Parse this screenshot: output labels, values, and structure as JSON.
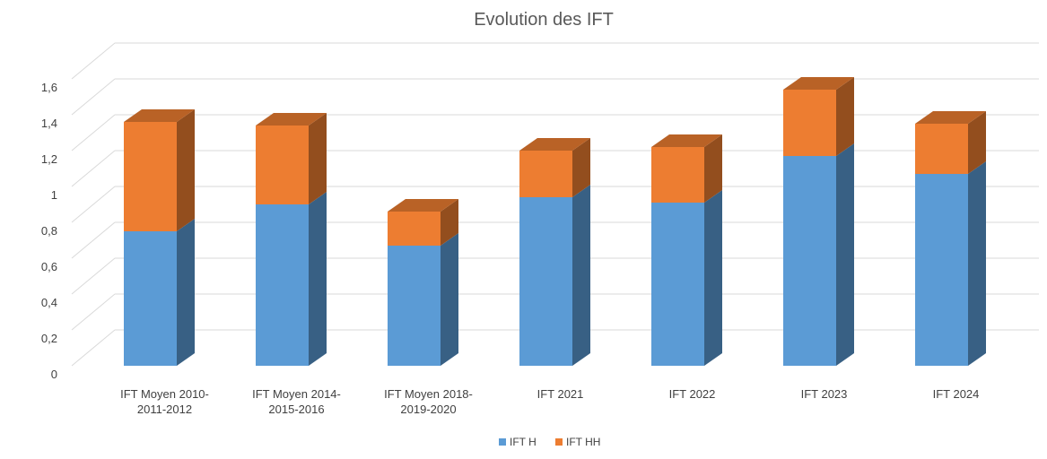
{
  "chart_data": {
    "type": "bar",
    "stacked": true,
    "style": "3d-column",
    "title": "Evolution des IFT",
    "categories": [
      "IFT Moyen 2010-2011-2012",
      "IFT Moyen 2014-2015-2016",
      "IFT Moyen 2018-2019-2020",
      "IFT 2021",
      "IFT 2022",
      "IFT 2023",
      "IFT 2024"
    ],
    "series": [
      {
        "name": "IFT H",
        "color": "#5b9bd5",
        "values": [
          0.75,
          0.9,
          0.67,
          0.94,
          0.91,
          1.17,
          1.07
        ]
      },
      {
        "name": "IFT HH",
        "color": "#ed7d31",
        "values": [
          0.61,
          0.44,
          0.19,
          0.26,
          0.31,
          0.37,
          0.28
        ]
      }
    ],
    "yticks": [
      "0",
      "0,2",
      "0,4",
      "0,6",
      "0,8",
      "1",
      "1,2",
      "1,4",
      "1,6"
    ],
    "ylim": [
      0,
      1.6
    ],
    "grid": true,
    "legend_position": "bottom"
  }
}
